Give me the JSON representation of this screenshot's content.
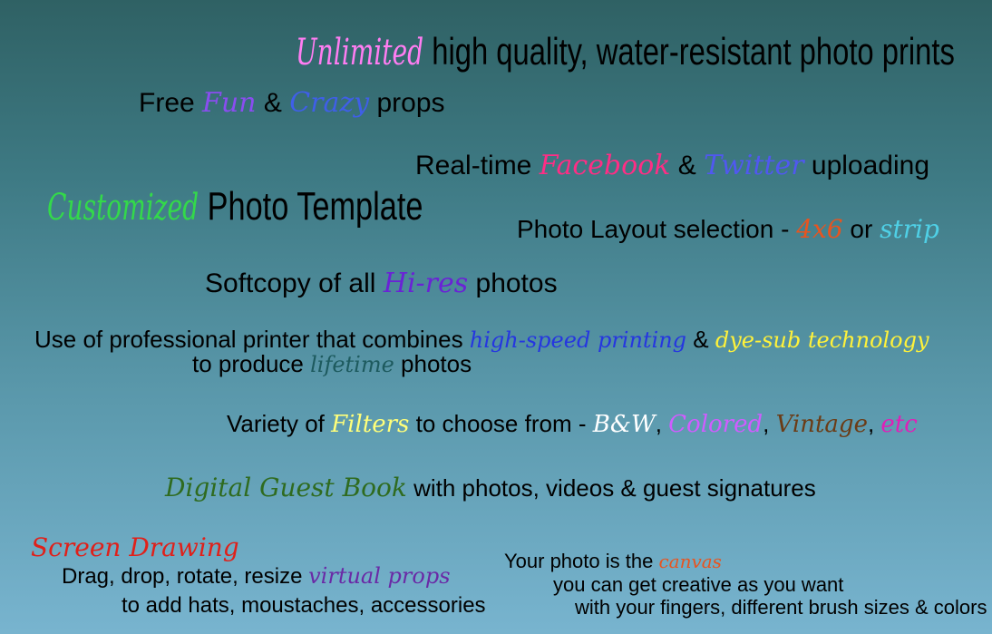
{
  "lines": {
    "l1": {
      "accent": "Unlimited",
      "rest": " high quality, water-resistant photo prints"
    },
    "l2": {
      "pre": "Free ",
      "a1": "Fun",
      "mid": " & ",
      "a2": "Crazy",
      "post": " props"
    },
    "l3": {
      "pre": "Real-time ",
      "a1": "Facebook",
      "mid": " & ",
      "a2": "Twitter",
      "post": " uploading"
    },
    "l4": {
      "accent": "Customized",
      "rest": " Photo Template"
    },
    "l5": {
      "pre": "Photo Layout selection - ",
      "a1": "4x6",
      "mid": " or ",
      "a2": "strip"
    },
    "l6": {
      "pre": "Softcopy of all ",
      "a1": "Hi-res",
      "post": " photos"
    },
    "l7": {
      "pre": "Use of professional printer that combines ",
      "a1": "high-speed printing",
      "mid": " & ",
      "a2": "dye-sub technology"
    },
    "l8": {
      "pre": "to produce ",
      "a1": "lifetime",
      "post": " photos"
    },
    "l9": {
      "pre": "Variety of ",
      "a1": "Filters",
      "mid": " to choose from - ",
      "a2": "B&W",
      "s1": ", ",
      "a3": "Colored",
      "s2": ", ",
      "a4": "Vintage",
      "s3": ", ",
      "a5": "etc"
    },
    "l10": {
      "a1": "Digital Guest Book",
      "post": " with photos, videos & guest signatures"
    },
    "l11": {
      "a1": "Screen Drawing"
    },
    "l12": {
      "pre": "Drag, drop, rotate, resize ",
      "a1": "virtual props"
    },
    "l13": {
      "pre": "to add hats, moustaches, accessories"
    },
    "l14": {
      "pre": "Your photo is the ",
      "a1": "canvas"
    },
    "l15": {
      "pre": "you can get creative as you want"
    },
    "l16": {
      "pre": "with your fingers, different brush sizes & colors"
    }
  },
  "colors": {
    "unlimited": "#ff7df2",
    "fun": "#8a4df0",
    "crazy": "#3f5fe8",
    "facebook": "#ff2d85",
    "twitter": "#5058f0",
    "customized": "#33d94a",
    "size": "#e8541f",
    "strip": "#4fd0e6",
    "hires": "#6a22d6",
    "highspeed": "#2536e0",
    "dyesub": "#fff23a",
    "lifetime": "#1d5a5e",
    "filters": "#ffff7a",
    "bw": "#ffffff",
    "colored": "#d05cff",
    "vintage": "#6b3c16",
    "etc": "#e01fb8",
    "guestbook": "#2f6b1f",
    "screendrawing": "#e0201a",
    "virtualprops": "#6a2aa6",
    "canvas": "#e8541f"
  }
}
